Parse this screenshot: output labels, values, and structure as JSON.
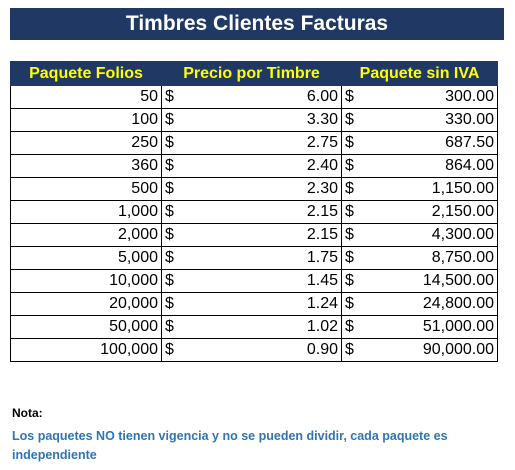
{
  "title": "Timbres Clientes Facturas",
  "headers": {
    "paquete_folios": "Paquete Folios",
    "precio_por_timbre": "Precio por Timbre",
    "paquete_sin_iva": "Paquete sin IVA"
  },
  "currency_symbol": "$",
  "rows": [
    {
      "folios": "50",
      "precio": "6.00",
      "paquete": "300.00"
    },
    {
      "folios": "100",
      "precio": "3.30",
      "paquete": "330.00"
    },
    {
      "folios": "250",
      "precio": "2.75",
      "paquete": "687.50"
    },
    {
      "folios": "360",
      "precio": "2.40",
      "paquete": "864.00"
    },
    {
      "folios": "500",
      "precio": "2.30",
      "paquete": "1,150.00"
    },
    {
      "folios": "1,000",
      "precio": "2.15",
      "paquete": "2,150.00"
    },
    {
      "folios": "2,000",
      "precio": "2.15",
      "paquete": "4,300.00"
    },
    {
      "folios": "5,000",
      "precio": "1.75",
      "paquete": "8,750.00"
    },
    {
      "folios": "10,000",
      "precio": "1.45",
      "paquete": "14,500.00"
    },
    {
      "folios": "20,000",
      "precio": "1.24",
      "paquete": "24,800.00"
    },
    {
      "folios": "50,000",
      "precio": "1.02",
      "paquete": "51,000.00"
    },
    {
      "folios": "100,000",
      "precio": "0.90",
      "paquete": "90,000.00"
    }
  ],
  "nota": {
    "label": "Nota:",
    "text": "Los paquetes NO tienen vigencia y no se pueden dividir, cada paquete es independiente"
  },
  "colors": {
    "header_bg": "#1f3864",
    "header_text": "#ffff00",
    "title_text": "#ffffff",
    "nota_text": "#2e75b6"
  }
}
